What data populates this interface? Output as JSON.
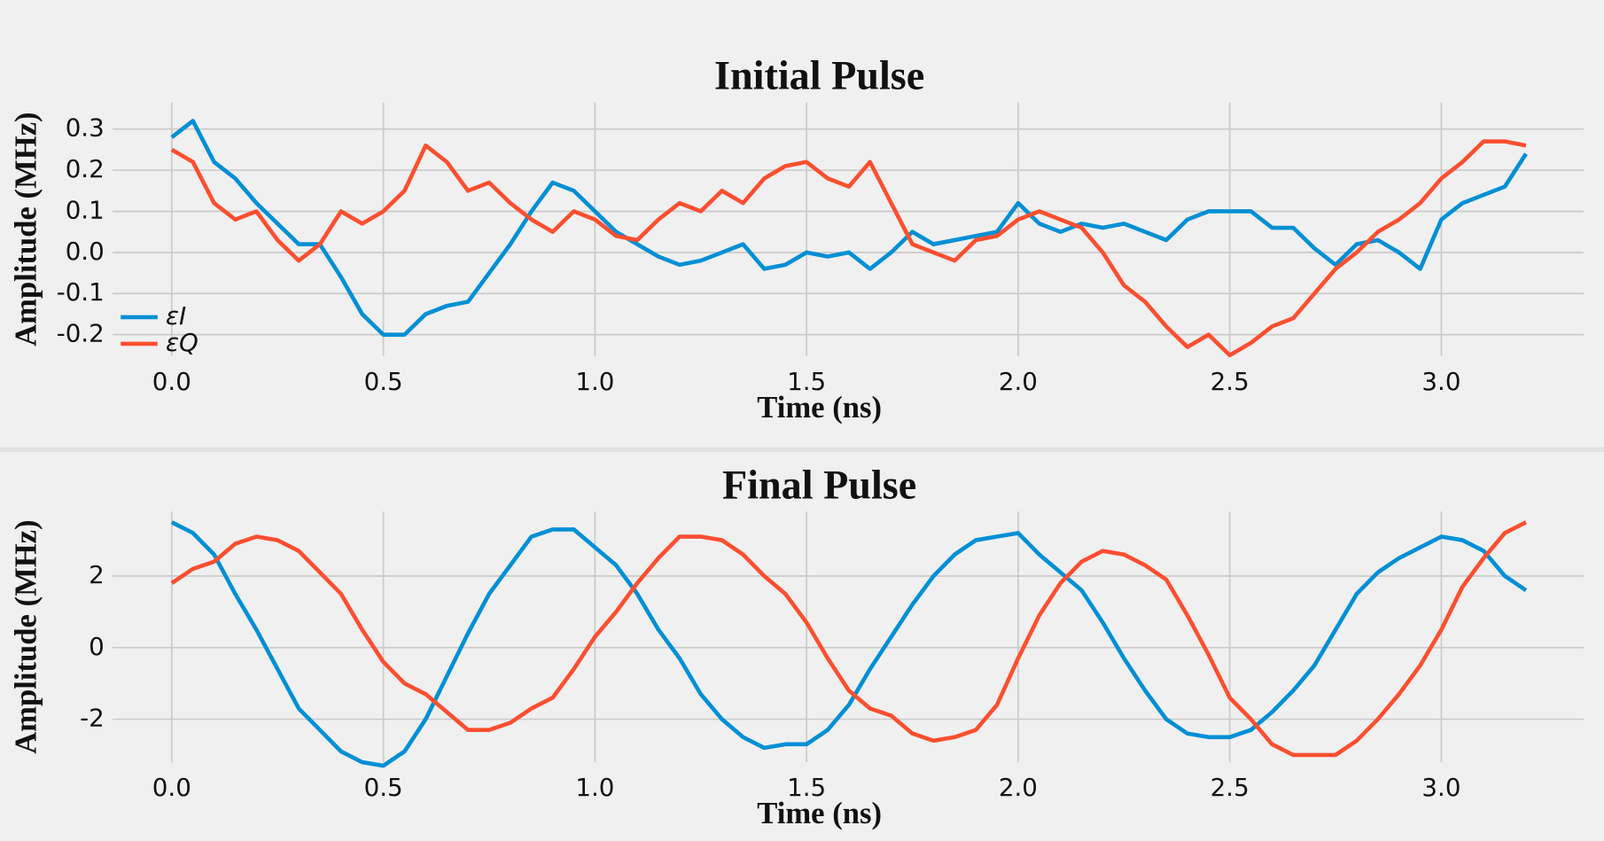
{
  "chart_data": [
    {
      "type": "line",
      "title": "Initial Pulse",
      "xlabel": "Time (ns)",
      "ylabel": "Amplitude (MHz)",
      "xlim": [
        -0.14,
        3.336
      ],
      "ylim": [
        -0.252,
        0.365
      ],
      "xticks": [
        {
          "value": 0,
          "label": "0.0"
        },
        0.5,
        {
          "value": 1,
          "label": "1.0"
        },
        1.5,
        {
          "value": 2,
          "label": "2.0"
        },
        2.5,
        {
          "value": 3,
          "label": "3.0"
        }
      ],
      "yticks": [
        -0.2,
        -0.1,
        {
          "value": 0,
          "label": "0.0"
        },
        0.1,
        0.2,
        0.3
      ],
      "grid": true,
      "legend": "lower left",
      "x": [
        0,
        0.05,
        0.1,
        0.15,
        0.2,
        0.25,
        0.3,
        0.35,
        0.4,
        0.45,
        0.5,
        0.55,
        0.6,
        0.65,
        0.7,
        0.75,
        0.8,
        0.85,
        0.9,
        0.95,
        1,
        1.05,
        1.1,
        1.15,
        1.2,
        1.25,
        1.3,
        1.35,
        1.4,
        1.45,
        1.5,
        1.55,
        1.6,
        1.65,
        1.7,
        1.75,
        1.8,
        1.85,
        1.9,
        1.95,
        2,
        2.05,
        2.1,
        2.15,
        2.2,
        2.25,
        2.3,
        2.35,
        2.4,
        2.45,
        2.5,
        2.55,
        2.6,
        2.65,
        2.7,
        2.75,
        2.8,
        2.85,
        2.9,
        2.95,
        3,
        3.05,
        3.1,
        3.15,
        3.2
      ],
      "series": [
        {
          "name": "εI",
          "color": "#008fd5",
          "values": [
            0.28,
            0.32,
            0.22,
            0.18,
            0.12,
            0.07,
            0.02,
            0.02,
            -0.06,
            -0.15,
            -0.2,
            -0.2,
            -0.15,
            -0.13,
            -0.12,
            -0.05,
            0.02,
            0.1,
            0.17,
            0.15,
            0.1,
            0.05,
            0.02,
            -0.01,
            -0.03,
            -0.02,
            0,
            0.02,
            -0.04,
            -0.03,
            0,
            -0.01,
            0,
            -0.04,
            0,
            0.05,
            0.02,
            0.03,
            0.04,
            0.05,
            0.12,
            0.07,
            0.05,
            0.07,
            0.06,
            0.07,
            0.05,
            0.03,
            0.08,
            0.1,
            0.1,
            0.1,
            0.06,
            0.06,
            0.01,
            -0.03,
            0.02,
            0.03,
            0,
            -0.04,
            0.08,
            0.12,
            0.14,
            0.16,
            0.24
          ]
        },
        {
          "name": "εQ",
          "color": "#fc4f30",
          "values": [
            0.25,
            0.22,
            0.12,
            0.08,
            0.1,
            0.03,
            -0.02,
            0.02,
            0.1,
            0.07,
            0.1,
            0.15,
            0.26,
            0.22,
            0.15,
            0.17,
            0.12,
            0.08,
            0.05,
            0.1,
            0.08,
            0.04,
            0.03,
            0.08,
            0.12,
            0.1,
            0.15,
            0.12,
            0.18,
            0.21,
            0.22,
            0.18,
            0.16,
            0.22,
            0.12,
            0.02,
            0,
            -0.02,
            0.03,
            0.04,
            0.08,
            0.1,
            0.08,
            0.06,
            0,
            -0.08,
            -0.12,
            -0.18,
            -0.23,
            -0.2,
            -0.25,
            -0.22,
            -0.18,
            -0.16,
            -0.1,
            -0.04,
            0,
            0.05,
            0.08,
            0.12,
            0.18,
            0.22,
            0.27,
            0.27,
            0.26
          ]
        }
      ]
    },
    {
      "type": "line",
      "title": "Final Pulse",
      "xlabel": "Time (ns)",
      "ylabel": "Amplitude (MHz)",
      "xlim": [
        -0.14,
        3.336
      ],
      "ylim": [
        -3.2,
        3.8
      ],
      "xticks": [
        {
          "value": 0,
          "label": "0.0"
        },
        0.5,
        {
          "value": 1,
          "label": "1.0"
        },
        1.5,
        {
          "value": 2,
          "label": "2.0"
        },
        2.5,
        {
          "value": 3,
          "label": "3.0"
        }
      ],
      "yticks": [
        -2,
        0,
        2
      ],
      "grid": true,
      "x": [
        0,
        0.05,
        0.1,
        0.15,
        0.2,
        0.25,
        0.3,
        0.35,
        0.4,
        0.45,
        0.5,
        0.55,
        0.6,
        0.65,
        0.7,
        0.75,
        0.8,
        0.85,
        0.9,
        0.95,
        1,
        1.05,
        1.1,
        1.15,
        1.2,
        1.25,
        1.3,
        1.35,
        1.4,
        1.45,
        1.5,
        1.55,
        1.6,
        1.65,
        1.7,
        1.75,
        1.8,
        1.85,
        1.9,
        1.95,
        2,
        2.05,
        2.1,
        2.15,
        2.2,
        2.25,
        2.3,
        2.35,
        2.4,
        2.45,
        2.5,
        2.55,
        2.6,
        2.65,
        2.7,
        2.75,
        2.8,
        2.85,
        2.9,
        2.95,
        3,
        3.05,
        3.1,
        3.15,
        3.2
      ],
      "series": [
        {
          "color": "#008fd5",
          "values": [
            3.5,
            3.2,
            2.6,
            1.5,
            0.5,
            -0.6,
            -1.7,
            -2.3,
            -2.9,
            -3.2,
            -3.3,
            -2.9,
            -2,
            -0.8,
            0.4,
            1.5,
            2.3,
            3.1,
            3.3,
            3.3,
            2.8,
            2.3,
            1.5,
            0.5,
            -0.3,
            -1.3,
            -2,
            -2.5,
            -2.8,
            -2.7,
            -2.7,
            -2.3,
            -1.6,
            -0.6,
            0.3,
            1.2,
            2,
            2.6,
            3,
            3.1,
            3.2,
            2.6,
            2.1,
            1.6,
            0.7,
            -0.3,
            -1.2,
            -2,
            -2.4,
            -2.5,
            -2.5,
            -2.3,
            -1.8,
            -1.2,
            -0.5,
            0.5,
            1.5,
            2.1,
            2.5,
            2.8,
            3.1,
            3,
            2.7,
            2,
            1.6
          ]
        },
        {
          "color": "#fc4f30",
          "values": [
            1.8,
            2.2,
            2.4,
            2.9,
            3.1,
            3,
            2.7,
            2.1,
            1.5,
            0.5,
            -0.4,
            -1,
            -1.3,
            -1.8,
            -2.3,
            -2.3,
            -2.1,
            -1.7,
            -1.4,
            -0.6,
            0.3,
            1,
            1.8,
            2.5,
            3.1,
            3.1,
            3,
            2.6,
            2,
            1.5,
            0.7,
            -0.3,
            -1.2,
            -1.7,
            -1.9,
            -2.4,
            -2.6,
            -2.5,
            -2.3,
            -1.6,
            -0.3,
            0.9,
            1.8,
            2.4,
            2.7,
            2.6,
            2.3,
            1.9,
            0.9,
            -0.2,
            -1.4,
            -2,
            -2.7,
            -3,
            -3,
            -3,
            -2.6,
            -2,
            -1.3,
            -0.5,
            0.5,
            1.7,
            2.5,
            3.2,
            3.5
          ]
        }
      ]
    }
  ]
}
